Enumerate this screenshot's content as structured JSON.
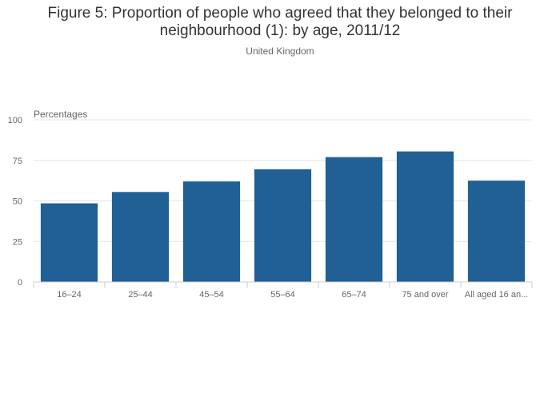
{
  "chart_data": {
    "type": "bar",
    "title": "Figure 5: Proportion of people who agreed that they belonged to their neighbourhood (1): by age, 2011/12",
    "subtitle": "United Kingdom",
    "ylabel": "Percentages",
    "xlabel": "",
    "ylim": [
      0,
      100
    ],
    "yticks": [
      0,
      25,
      50,
      75,
      100
    ],
    "categories": [
      "16–24",
      "25–44",
      "45–54",
      "55–64",
      "65–74",
      "75 and over",
      "All aged 16 an..."
    ],
    "values": [
      48.5,
      55.5,
      62,
      69.5,
      77,
      80.5,
      62.5
    ],
    "bar_color": "#206095",
    "grid": true,
    "legend": "none"
  }
}
